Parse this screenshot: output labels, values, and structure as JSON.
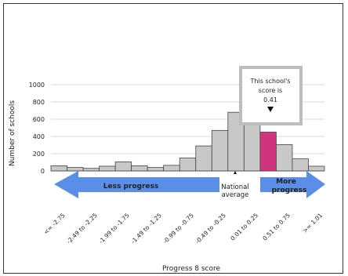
{
  "chart_data": {
    "type": "bar",
    "xlabel": "Progress 8 score",
    "ylabel": "Number of schools",
    "ylim": [
      0,
      1000
    ],
    "yticks": [
      "0",
      "200",
      "400",
      "600",
      "800",
      "1000"
    ],
    "grid": true,
    "values": [
      60,
      40,
      30,
      55,
      105,
      60,
      40,
      65,
      150,
      290,
      470,
      680,
      650,
      450,
      305,
      140,
      55
    ],
    "highlight_index": 13,
    "tick_labels": [
      "<= -2.75",
      "-2.49 to -2.25",
      "-1.99 to -1.75",
      "-1.49 to -1.25",
      "-0.99 to -0.75",
      "-0.49 to -0.25",
      "0.01 to 0.25",
      "0.51 to 0.75",
      ">= 1.01"
    ],
    "colors": {
      "bar": "#c8c8c8",
      "highlight": "#d1337e",
      "arrow": "#5b8ee6",
      "grid": "#cccccc"
    },
    "annotations": {
      "less_progress": "Less progress",
      "more_progress_line1": "More",
      "more_progress_line2": "progress",
      "national_line1": "National",
      "national_line2": "average",
      "callout_line1": "This school's",
      "callout_line2": "score is",
      "callout_value": "0.41"
    }
  }
}
